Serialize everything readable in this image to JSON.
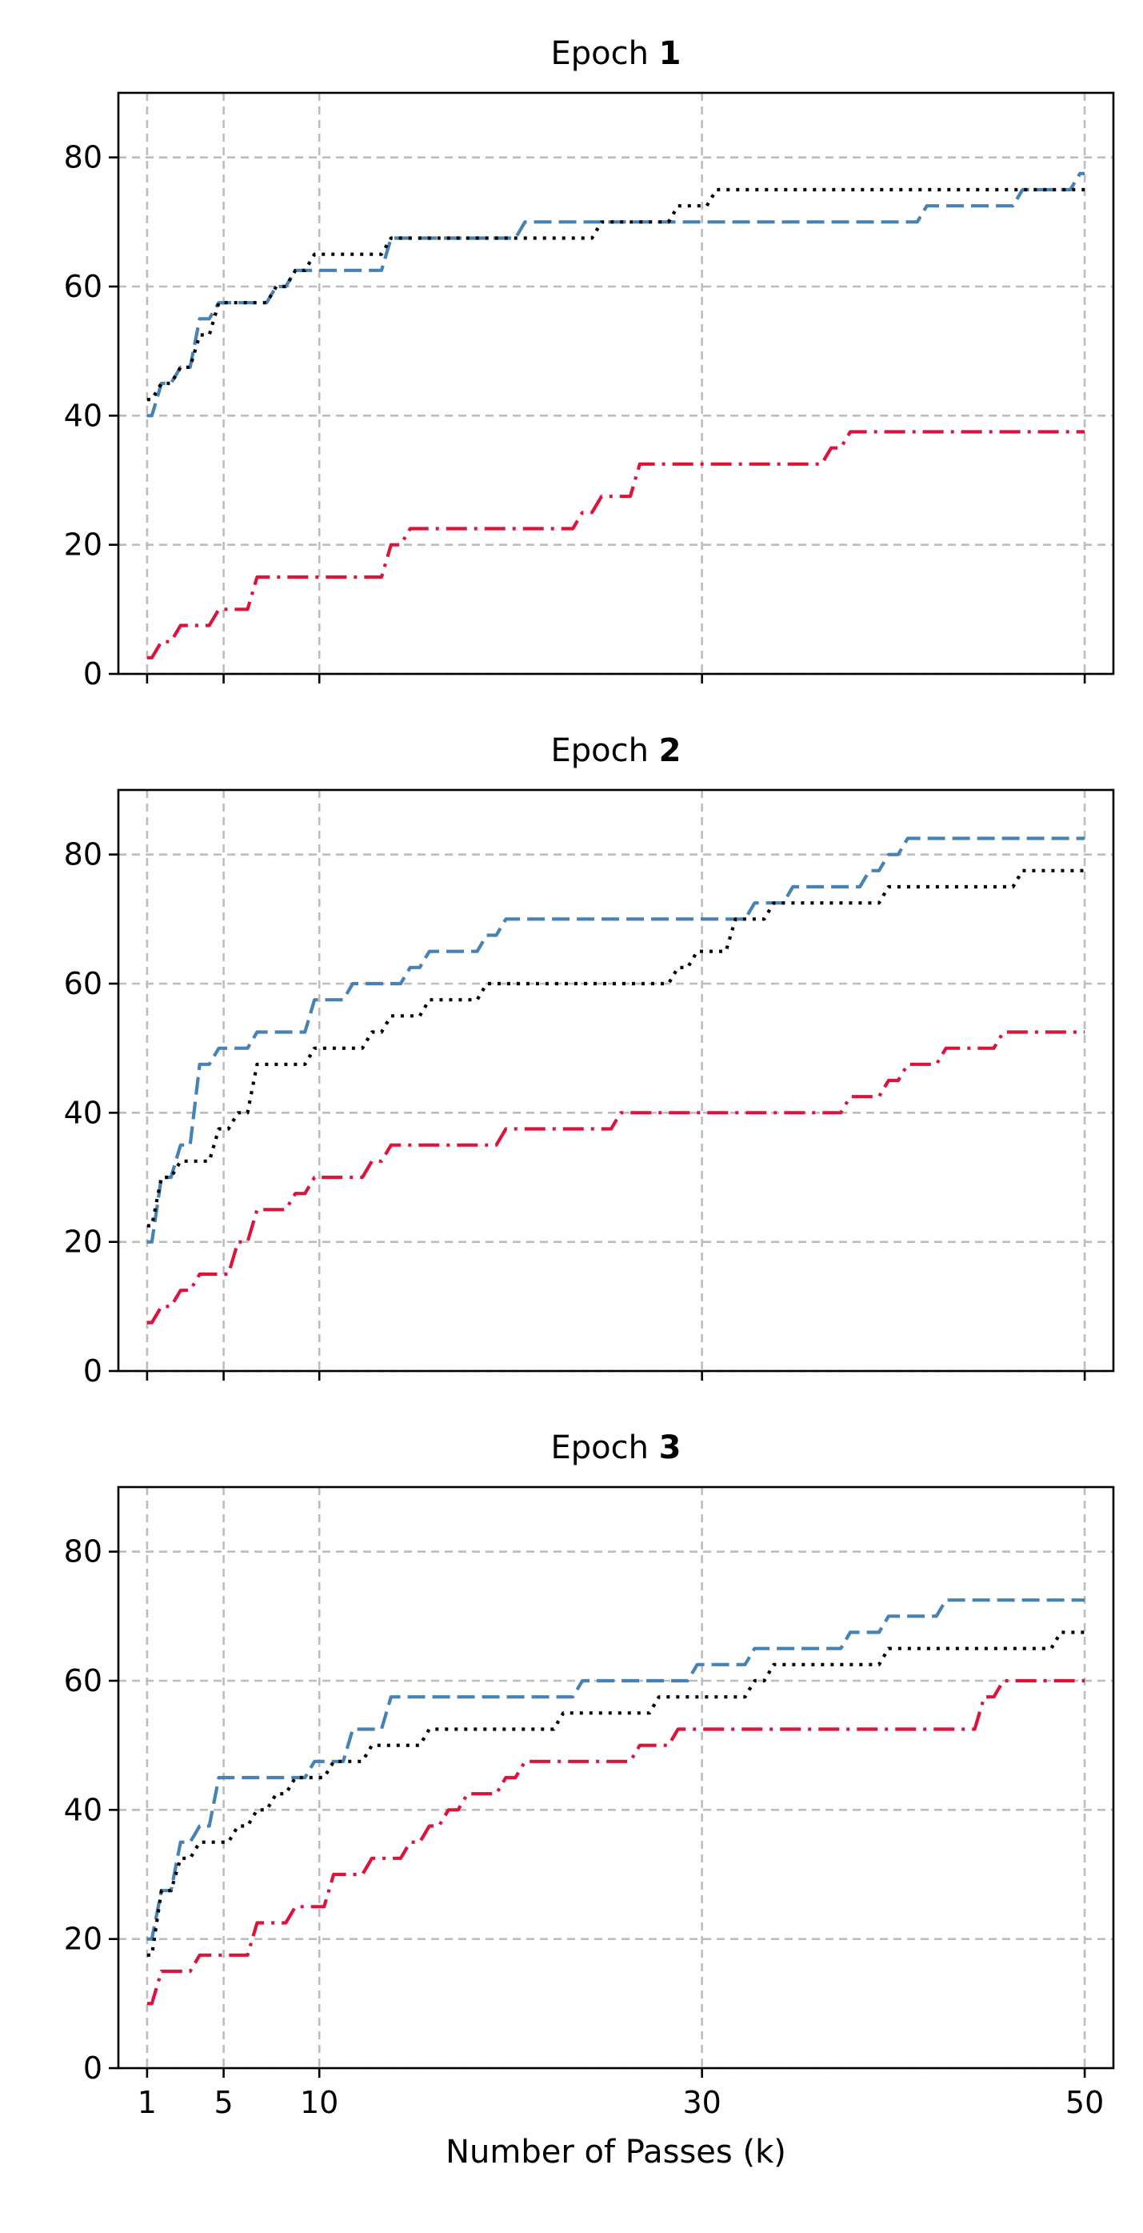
{
  "chart_data": [
    {
      "type": "line",
      "title": "Epoch ",
      "title_bold": "1",
      "xlabel": "",
      "ylabel": "",
      "xlim": [
        -0.5,
        51.5
      ],
      "ylim": [
        0,
        90
      ],
      "xticks": [
        1,
        5,
        10,
        30,
        50
      ],
      "yticks": [
        0,
        20,
        40,
        60,
        80
      ],
      "show_xticklabels": false,
      "grid": true,
      "legend": "none",
      "series": [
        {
          "color": "#4682b4",
          "dash": "dashed",
          "x": [
            1,
            2,
            3,
            4,
            5,
            6,
            7,
            8,
            9,
            10,
            11,
            12,
            13,
            14,
            15,
            16,
            17,
            18,
            19,
            20,
            21,
            22,
            23,
            24,
            25,
            26,
            27,
            28,
            29,
            30,
            31,
            32,
            33,
            34,
            35,
            36,
            37,
            38,
            39,
            40,
            41,
            42,
            43,
            44,
            45,
            46,
            47,
            48,
            49,
            50
          ],
          "y": [
            40,
            45,
            47.5,
            55,
            57.5,
            57.5,
            57.5,
            60,
            62.5,
            62.5,
            62.5,
            62.5,
            62.5,
            67.5,
            67.5,
            67.5,
            67.5,
            67.5,
            67.5,
            67.5,
            70,
            70,
            70,
            70,
            70,
            70,
            70,
            70,
            70,
            70,
            70,
            70,
            70,
            70,
            70,
            70,
            70,
            70,
            70,
            70,
            70,
            72.5,
            72.5,
            72.5,
            72.5,
            72.5,
            75,
            75,
            75,
            77.5
          ]
        },
        {
          "color": "#000000",
          "dash": "dotted",
          "x": [
            1,
            2,
            3,
            4,
            5,
            6,
            7,
            8,
            9,
            10,
            11,
            12,
            13,
            14,
            15,
            16,
            17,
            18,
            19,
            20,
            21,
            22,
            23,
            24,
            25,
            26,
            27,
            28,
            29,
            30,
            31,
            32,
            33,
            34,
            35,
            36,
            37,
            38,
            39,
            40,
            41,
            42,
            43,
            44,
            45,
            46,
            47,
            48,
            49,
            50
          ],
          "y": [
            42.5,
            45,
            47.5,
            52.5,
            57.5,
            57.5,
            57.5,
            60,
            62.5,
            65,
            65,
            65,
            65,
            67.5,
            67.5,
            67.5,
            67.5,
            67.5,
            67.5,
            67.5,
            67.5,
            67.5,
            67.5,
            67.5,
            70,
            70,
            70,
            70,
            72.5,
            72.5,
            75,
            75,
            75,
            75,
            75,
            75,
            75,
            75,
            75,
            75,
            75,
            75,
            75,
            75,
            75,
            75,
            75,
            75,
            75,
            75
          ]
        },
        {
          "color": "#dc143c",
          "dash": "dashdot",
          "x": [
            1,
            2,
            3,
            4,
            5,
            6,
            7,
            8,
            9,
            10,
            11,
            12,
            13,
            14,
            15,
            16,
            17,
            18,
            19,
            20,
            21,
            22,
            23,
            24,
            25,
            26,
            27,
            28,
            29,
            30,
            31,
            32,
            33,
            34,
            35,
            36,
            37,
            38,
            39,
            40,
            41,
            42,
            43,
            44,
            45,
            46,
            47,
            48,
            49,
            50
          ],
          "y": [
            2.5,
            5,
            7.5,
            7.5,
            10,
            10,
            15,
            15,
            15,
            15,
            15,
            15,
            15,
            20,
            22.5,
            22.5,
            22.5,
            22.5,
            22.5,
            22.5,
            22.5,
            22.5,
            22.5,
            25,
            27.5,
            27.5,
            32.5,
            32.5,
            32.5,
            32.5,
            32.5,
            32.5,
            32.5,
            32.5,
            32.5,
            32.5,
            35,
            37.5,
            37.5,
            37.5,
            37.5,
            37.5,
            37.5,
            37.5,
            37.5,
            37.5,
            37.5,
            37.5,
            37.5,
            37.5
          ]
        }
      ]
    },
    {
      "type": "line",
      "title": "Epoch ",
      "title_bold": "2",
      "xlabel": "",
      "ylabel": "",
      "xlim": [
        -0.5,
        51.5
      ],
      "ylim": [
        0,
        90
      ],
      "xticks": [
        1,
        5,
        10,
        30,
        50
      ],
      "yticks": [
        0,
        20,
        40,
        60,
        80
      ],
      "show_xticklabels": false,
      "grid": true,
      "legend": "none",
      "series": [
        {
          "color": "#4682b4",
          "dash": "dashed",
          "x": [
            1,
            2,
            3,
            4,
            5,
            6,
            7,
            8,
            9,
            10,
            11,
            12,
            13,
            14,
            15,
            16,
            17,
            18,
            19,
            20,
            21,
            22,
            23,
            24,
            25,
            26,
            27,
            28,
            29,
            30,
            31,
            32,
            33,
            34,
            35,
            36,
            37,
            38,
            39,
            40,
            41,
            42,
            43,
            44,
            45,
            46,
            47,
            48,
            49,
            50
          ],
          "y": [
            20,
            30,
            35,
            47.5,
            50,
            50,
            52.5,
            52.5,
            52.5,
            57.5,
            57.5,
            60,
            60,
            60,
            62.5,
            65,
            65,
            65,
            67.5,
            70,
            70,
            70,
            70,
            70,
            70,
            70,
            70,
            70,
            70,
            70,
            70,
            70,
            72.5,
            72.5,
            75,
            75,
            75,
            75,
            77.5,
            80,
            82.5,
            82.5,
            82.5,
            82.5,
            82.5,
            82.5,
            82.5,
            82.5,
            82.5,
            82.5
          ]
        },
        {
          "color": "#000000",
          "dash": "dotted",
          "x": [
            1,
            2,
            3,
            4,
            5,
            6,
            7,
            8,
            9,
            10,
            11,
            12,
            13,
            14,
            15,
            16,
            17,
            18,
            19,
            20,
            21,
            22,
            23,
            24,
            25,
            26,
            27,
            28,
            29,
            30,
            31,
            32,
            33,
            34,
            35,
            36,
            37,
            38,
            39,
            40,
            41,
            42,
            43,
            44,
            45,
            46,
            47,
            48,
            49,
            50
          ],
          "y": [
            22.5,
            30,
            32.5,
            32.5,
            37.5,
            40,
            47.5,
            47.5,
            47.5,
            50,
            50,
            50,
            52.5,
            55,
            55,
            57.5,
            57.5,
            57.5,
            60,
            60,
            60,
            60,
            60,
            60,
            60,
            60,
            60,
            60,
            62.5,
            65,
            65,
            70,
            70,
            72.5,
            72.5,
            72.5,
            72.5,
            72.5,
            72.5,
            75,
            75,
            75,
            75,
            75,
            75,
            75,
            77.5,
            77.5,
            77.5,
            77.5
          ]
        },
        {
          "color": "#dc143c",
          "dash": "dashdot",
          "x": [
            1,
            2,
            3,
            4,
            5,
            6,
            7,
            8,
            9,
            10,
            11,
            12,
            13,
            14,
            15,
            16,
            17,
            18,
            19,
            20,
            21,
            22,
            23,
            24,
            25,
            26,
            27,
            28,
            29,
            30,
            31,
            32,
            33,
            34,
            35,
            36,
            37,
            38,
            39,
            40,
            41,
            42,
            43,
            44,
            45,
            46,
            47,
            48,
            49,
            50
          ],
          "y": [
            7.5,
            10,
            12.5,
            15,
            15,
            20,
            25,
            25,
            27.5,
            30,
            30,
            30,
            32.5,
            35,
            35,
            35,
            35,
            35,
            35,
            37.5,
            37.5,
            37.5,
            37.5,
            37.5,
            37.5,
            40,
            40,
            40,
            40,
            40,
            40,
            40,
            40,
            40,
            40,
            40,
            40,
            42.5,
            42.5,
            45,
            47.5,
            47.5,
            50,
            50,
            50,
            52.5,
            52.5,
            52.5,
            52.5,
            52.5
          ]
        }
      ]
    },
    {
      "type": "line",
      "title": "Epoch ",
      "title_bold": "3",
      "xlabel": "Number of Passes (k)",
      "ylabel": "",
      "xlim": [
        -0.5,
        51.5
      ],
      "ylim": [
        0,
        90
      ],
      "xticks": [
        1,
        5,
        10,
        30,
        50
      ],
      "yticks": [
        0,
        20,
        40,
        60,
        80
      ],
      "show_xticklabels": true,
      "grid": true,
      "legend": "none",
      "series": [
        {
          "color": "#4682b4",
          "dash": "dashed",
          "x": [
            1,
            2,
            3,
            4,
            5,
            6,
            7,
            8,
            9,
            10,
            11,
            12,
            13,
            14,
            15,
            16,
            17,
            18,
            19,
            20,
            21,
            22,
            23,
            24,
            25,
            26,
            27,
            28,
            29,
            30,
            31,
            32,
            33,
            34,
            35,
            36,
            37,
            38,
            39,
            40,
            41,
            42,
            43,
            44,
            45,
            46,
            47,
            48,
            49,
            50
          ],
          "y": [
            20,
            27.5,
            35,
            37.5,
            45,
            45,
            45,
            45,
            45,
            47.5,
            47.5,
            52.5,
            52.5,
            57.5,
            57.5,
            57.5,
            57.5,
            57.5,
            57.5,
            57.5,
            57.5,
            57.5,
            57.5,
            60,
            60,
            60,
            60,
            60,
            60,
            62.5,
            62.5,
            62.5,
            65,
            65,
            65,
            65,
            65,
            67.5,
            67.5,
            70,
            70,
            70,
            72.5,
            72.5,
            72.5,
            72.5,
            72.5,
            72.5,
            72.5,
            72.5
          ]
        },
        {
          "color": "#000000",
          "dash": "dotted",
          "x": [
            1,
            2,
            3,
            4,
            5,
            6,
            7,
            8,
            9,
            10,
            11,
            12,
            13,
            14,
            15,
            16,
            17,
            18,
            19,
            20,
            21,
            22,
            23,
            24,
            25,
            26,
            27,
            28,
            29,
            30,
            31,
            32,
            33,
            34,
            35,
            36,
            37,
            38,
            39,
            40,
            41,
            42,
            43,
            44,
            45,
            46,
            47,
            48,
            49,
            50
          ],
          "y": [
            17.5,
            27.5,
            32.5,
            35,
            35,
            37.5,
            40,
            42.5,
            45,
            45,
            47.5,
            47.5,
            50,
            50,
            50,
            52.5,
            52.5,
            52.5,
            52.5,
            52.5,
            52.5,
            52.5,
            55,
            55,
            55,
            55,
            55,
            57.5,
            57.5,
            57.5,
            57.5,
            57.5,
            60,
            62.5,
            62.5,
            62.5,
            62.5,
            62.5,
            62.5,
            65,
            65,
            65,
            65,
            65,
            65,
            65,
            65,
            65,
            67.5,
            67.5
          ]
        },
        {
          "color": "#dc143c",
          "dash": "dashdot",
          "x": [
            1,
            2,
            3,
            4,
            5,
            6,
            7,
            8,
            9,
            10,
            11,
            12,
            13,
            14,
            15,
            16,
            17,
            18,
            19,
            20,
            21,
            22,
            23,
            24,
            25,
            26,
            27,
            28,
            29,
            30,
            31,
            32,
            33,
            34,
            35,
            36,
            37,
            38,
            39,
            40,
            41,
            42,
            43,
            44,
            45,
            46,
            47,
            48,
            49,
            50
          ],
          "y": [
            10,
            15,
            15,
            17.5,
            17.5,
            17.5,
            22.5,
            22.5,
            25,
            25,
            30,
            30,
            32.5,
            32.5,
            35,
            37.5,
            40,
            42.5,
            42.5,
            45,
            47.5,
            47.5,
            47.5,
            47.5,
            47.5,
            47.5,
            50,
            50,
            52.5,
            52.5,
            52.5,
            52.5,
            52.5,
            52.5,
            52.5,
            52.5,
            52.5,
            52.5,
            52.5,
            52.5,
            52.5,
            52.5,
            52.5,
            52.5,
            57.5,
            60,
            60,
            60,
            60,
            60
          ]
        }
      ]
    }
  ]
}
